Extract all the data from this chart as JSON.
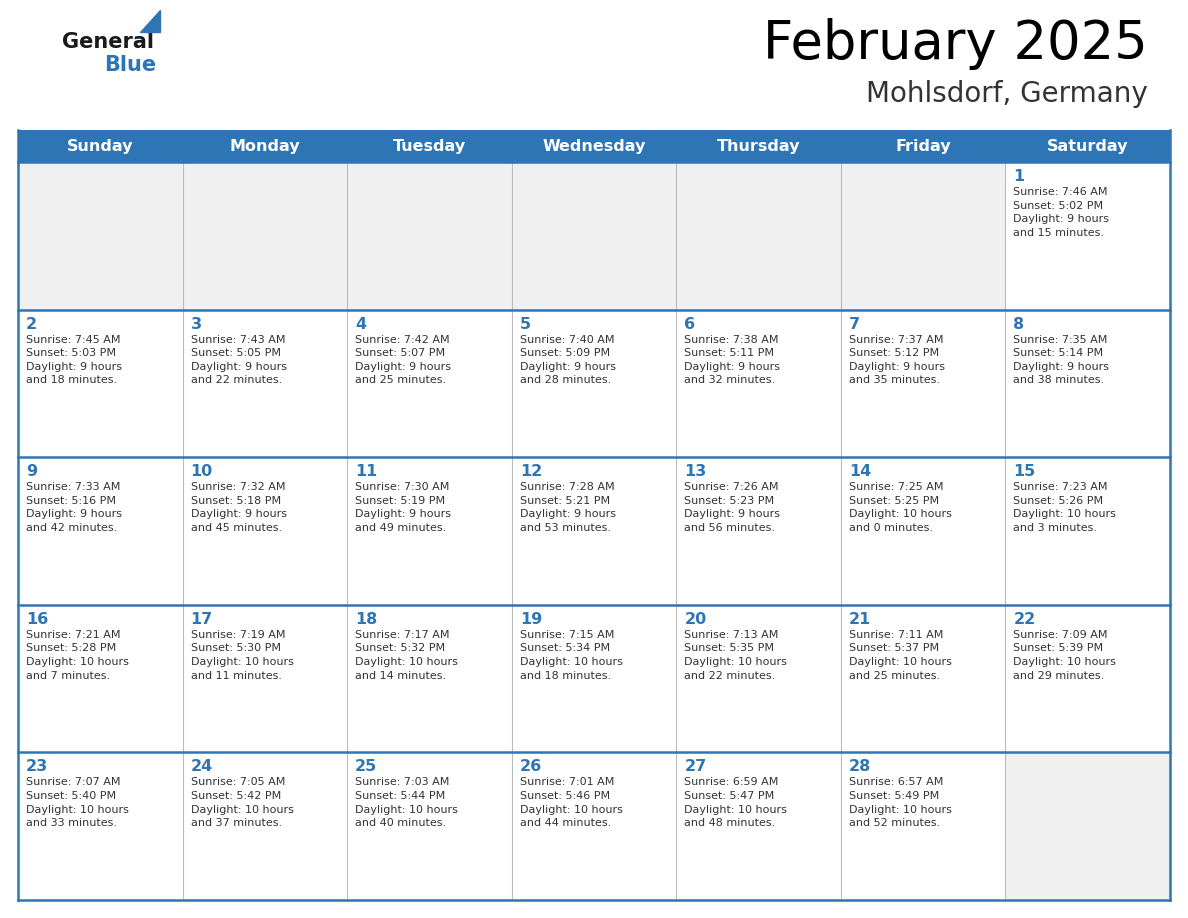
{
  "title": "February 2025",
  "subtitle": "Mohlsdorf, Germany",
  "header_bg_color": "#2E75B6",
  "header_text_color": "#FFFFFF",
  "cell_bg_color": "#FFFFFF",
  "alt_cell_bg_color": "#F0F0F0",
  "grid_color": "#2E75B6",
  "title_color": "#000000",
  "subtitle_color": "#444444",
  "day_number_color": "#2E75B6",
  "text_color": "#333333",
  "days_of_week": [
    "Sunday",
    "Monday",
    "Tuesday",
    "Wednesday",
    "Thursday",
    "Friday",
    "Saturday"
  ],
  "weeks": [
    [
      {
        "day": null,
        "info": null
      },
      {
        "day": null,
        "info": null
      },
      {
        "day": null,
        "info": null
      },
      {
        "day": null,
        "info": null
      },
      {
        "day": null,
        "info": null
      },
      {
        "day": null,
        "info": null
      },
      {
        "day": 1,
        "info": "Sunrise: 7:46 AM\nSunset: 5:02 PM\nDaylight: 9 hours\nand 15 minutes."
      }
    ],
    [
      {
        "day": 2,
        "info": "Sunrise: 7:45 AM\nSunset: 5:03 PM\nDaylight: 9 hours\nand 18 minutes."
      },
      {
        "day": 3,
        "info": "Sunrise: 7:43 AM\nSunset: 5:05 PM\nDaylight: 9 hours\nand 22 minutes."
      },
      {
        "day": 4,
        "info": "Sunrise: 7:42 AM\nSunset: 5:07 PM\nDaylight: 9 hours\nand 25 minutes."
      },
      {
        "day": 5,
        "info": "Sunrise: 7:40 AM\nSunset: 5:09 PM\nDaylight: 9 hours\nand 28 minutes."
      },
      {
        "day": 6,
        "info": "Sunrise: 7:38 AM\nSunset: 5:11 PM\nDaylight: 9 hours\nand 32 minutes."
      },
      {
        "day": 7,
        "info": "Sunrise: 7:37 AM\nSunset: 5:12 PM\nDaylight: 9 hours\nand 35 minutes."
      },
      {
        "day": 8,
        "info": "Sunrise: 7:35 AM\nSunset: 5:14 PM\nDaylight: 9 hours\nand 38 minutes."
      }
    ],
    [
      {
        "day": 9,
        "info": "Sunrise: 7:33 AM\nSunset: 5:16 PM\nDaylight: 9 hours\nand 42 minutes."
      },
      {
        "day": 10,
        "info": "Sunrise: 7:32 AM\nSunset: 5:18 PM\nDaylight: 9 hours\nand 45 minutes."
      },
      {
        "day": 11,
        "info": "Sunrise: 7:30 AM\nSunset: 5:19 PM\nDaylight: 9 hours\nand 49 minutes."
      },
      {
        "day": 12,
        "info": "Sunrise: 7:28 AM\nSunset: 5:21 PM\nDaylight: 9 hours\nand 53 minutes."
      },
      {
        "day": 13,
        "info": "Sunrise: 7:26 AM\nSunset: 5:23 PM\nDaylight: 9 hours\nand 56 minutes."
      },
      {
        "day": 14,
        "info": "Sunrise: 7:25 AM\nSunset: 5:25 PM\nDaylight: 10 hours\nand 0 minutes."
      },
      {
        "day": 15,
        "info": "Sunrise: 7:23 AM\nSunset: 5:26 PM\nDaylight: 10 hours\nand 3 minutes."
      }
    ],
    [
      {
        "day": 16,
        "info": "Sunrise: 7:21 AM\nSunset: 5:28 PM\nDaylight: 10 hours\nand 7 minutes."
      },
      {
        "day": 17,
        "info": "Sunrise: 7:19 AM\nSunset: 5:30 PM\nDaylight: 10 hours\nand 11 minutes."
      },
      {
        "day": 18,
        "info": "Sunrise: 7:17 AM\nSunset: 5:32 PM\nDaylight: 10 hours\nand 14 minutes."
      },
      {
        "day": 19,
        "info": "Sunrise: 7:15 AM\nSunset: 5:34 PM\nDaylight: 10 hours\nand 18 minutes."
      },
      {
        "day": 20,
        "info": "Sunrise: 7:13 AM\nSunset: 5:35 PM\nDaylight: 10 hours\nand 22 minutes."
      },
      {
        "day": 21,
        "info": "Sunrise: 7:11 AM\nSunset: 5:37 PM\nDaylight: 10 hours\nand 25 minutes."
      },
      {
        "day": 22,
        "info": "Sunrise: 7:09 AM\nSunset: 5:39 PM\nDaylight: 10 hours\nand 29 minutes."
      }
    ],
    [
      {
        "day": 23,
        "info": "Sunrise: 7:07 AM\nSunset: 5:40 PM\nDaylight: 10 hours\nand 33 minutes."
      },
      {
        "day": 24,
        "info": "Sunrise: 7:05 AM\nSunset: 5:42 PM\nDaylight: 10 hours\nand 37 minutes."
      },
      {
        "day": 25,
        "info": "Sunrise: 7:03 AM\nSunset: 5:44 PM\nDaylight: 10 hours\nand 40 minutes."
      },
      {
        "day": 26,
        "info": "Sunrise: 7:01 AM\nSunset: 5:46 PM\nDaylight: 10 hours\nand 44 minutes."
      },
      {
        "day": 27,
        "info": "Sunrise: 6:59 AM\nSunset: 5:47 PM\nDaylight: 10 hours\nand 48 minutes."
      },
      {
        "day": 28,
        "info": "Sunrise: 6:57 AM\nSunset: 5:49 PM\nDaylight: 10 hours\nand 52 minutes."
      },
      {
        "day": null,
        "info": null
      }
    ]
  ]
}
